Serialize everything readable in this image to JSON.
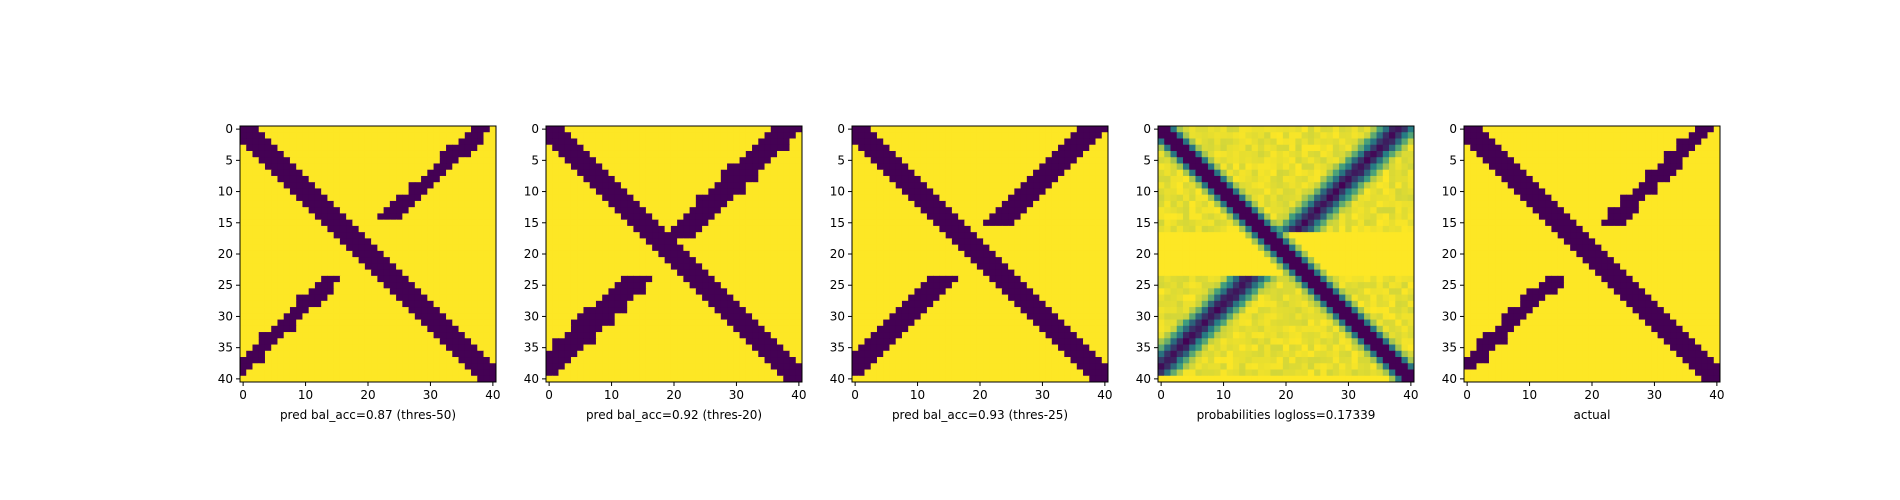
{
  "chart_data": [
    {
      "type": "heatmap",
      "title": "",
      "xlabel": "pred bal_acc=0.87 (thres-50)",
      "ylabel": "",
      "xlim": [
        0,
        40
      ],
      "ylim": [
        40,
        0
      ],
      "x_ticks": [
        "0",
        "10",
        "20",
        "30",
        "40"
      ],
      "y_ticks": [
        "0",
        "5",
        "10",
        "15",
        "20",
        "25",
        "30",
        "35",
        "40"
      ],
      "colormap": "viridis",
      "grid_size": 41,
      "pattern": "binary",
      "diagonal_band": {
        "orientation": "main",
        "rows": [
          0,
          40
        ],
        "half_width_cells": 2
      },
      "anti_diagonal_blobs": [
        {
          "rows": [
            0,
            14
          ],
          "half_width_cells": 1.5
        },
        {
          "rows": [
            24,
            39
          ],
          "half_width_cells": 1.5
        }
      ]
    },
    {
      "type": "heatmap",
      "title": "",
      "xlabel": "pred bal_acc=0.92 (thres-20)",
      "ylabel": "",
      "xlim": [
        0,
        40
      ],
      "ylim": [
        40,
        0
      ],
      "x_ticks": [
        "0",
        "10",
        "20",
        "30",
        "40"
      ],
      "y_ticks": [
        "0",
        "5",
        "10",
        "15",
        "20",
        "25",
        "30",
        "35",
        "40"
      ],
      "colormap": "viridis",
      "grid_size": 41,
      "pattern": "binary",
      "diagonal_band": {
        "orientation": "main",
        "rows": [
          0,
          40
        ],
        "half_width_cells": 2
      },
      "anti_diagonal_blobs": [
        {
          "rows": [
            0,
            17
          ],
          "half_width_cells": 2.5
        },
        {
          "rows": [
            24,
            39
          ],
          "half_width_cells": 2.5
        }
      ]
    },
    {
      "type": "heatmap",
      "title": "",
      "xlabel": "pred bal_acc=0.93 (thres-25)",
      "ylabel": "",
      "xlim": [
        0,
        40
      ],
      "ylim": [
        40,
        0
      ],
      "x_ticks": [
        "0",
        "10",
        "20",
        "30",
        "40"
      ],
      "y_ticks": [
        "0",
        "5",
        "10",
        "15",
        "20",
        "25",
        "30",
        "35",
        "40"
      ],
      "colormap": "viridis",
      "grid_size": 41,
      "pattern": "binary",
      "diagonal_band": {
        "orientation": "main",
        "rows": [
          0,
          40
        ],
        "half_width_cells": 2
      },
      "anti_diagonal_blobs": [
        {
          "rows": [
            0,
            15
          ],
          "half_width_cells": 2
        },
        {
          "rows": [
            24,
            39
          ],
          "half_width_cells": 2
        }
      ]
    },
    {
      "type": "heatmap",
      "title": "",
      "xlabel": "probabilities logloss=0.17339",
      "ylabel": "",
      "xlim": [
        0,
        40
      ],
      "ylim": [
        40,
        0
      ],
      "x_ticks": [
        "0",
        "10",
        "20",
        "30",
        "40"
      ],
      "y_ticks": [
        "0",
        "5",
        "10",
        "15",
        "20",
        "25",
        "30",
        "35",
        "40"
      ],
      "colormap": "viridis",
      "grid_size": 41,
      "pattern": "continuous",
      "diagonal_band": {
        "orientation": "main",
        "rows": [
          0,
          40
        ],
        "half_width_cells": 2
      },
      "anti_diagonal_blobs": [
        {
          "rows": [
            0,
            16
          ],
          "half_width_cells": 3
        },
        {
          "rows": [
            24,
            39
          ],
          "half_width_cells": 3
        }
      ]
    },
    {
      "type": "heatmap",
      "title": "",
      "xlabel": "actual",
      "ylabel": "",
      "xlim": [
        0,
        40
      ],
      "ylim": [
        40,
        0
      ],
      "x_ticks": [
        "0",
        "10",
        "20",
        "30",
        "40"
      ],
      "y_ticks": [
        "0",
        "5",
        "10",
        "15",
        "20",
        "25",
        "30",
        "35",
        "40"
      ],
      "colormap": "viridis",
      "grid_size": 41,
      "pattern": "binary",
      "diagonal_band": {
        "orientation": "main",
        "rows": [
          0,
          40
        ],
        "half_width_cells": 2
      },
      "anti_diagonal_blobs": [
        {
          "rows": [
            0,
            15
          ],
          "half_width_cells": 1.5
        },
        {
          "rows": [
            24,
            38
          ],
          "half_width_cells": 1.5
        }
      ]
    }
  ],
  "colors": {
    "low": "#440154",
    "mid": "#21918c",
    "high": "#fde725",
    "axis": "#000000",
    "background": "#ffffff"
  }
}
